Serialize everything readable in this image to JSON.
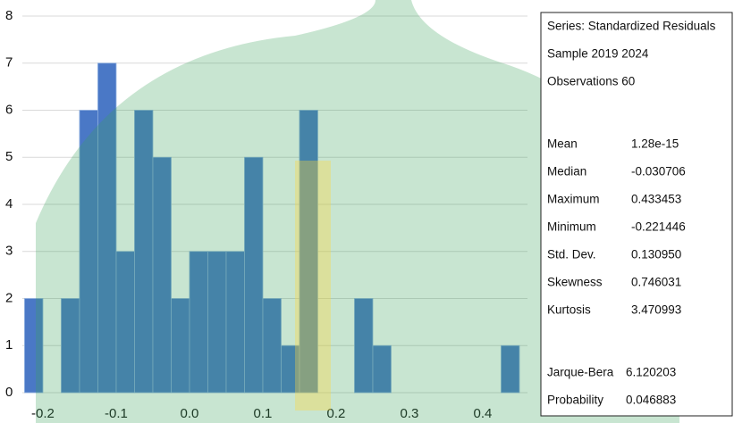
{
  "chart_data": {
    "type": "histogram",
    "bins": [
      -0.225,
      -0.2,
      -0.175,
      -0.15,
      -0.125,
      -0.1,
      -0.075,
      -0.05,
      -0.025,
      0,
      0.025,
      0.05,
      0.075,
      0.1,
      0.125,
      0.15,
      0.175,
      0.2,
      0.225,
      0.25,
      0.275,
      0.3,
      0.325,
      0.35,
      0.375,
      0.4,
      0.425,
      0.45,
      0.475
    ],
    "values": [
      2,
      0,
      2,
      6,
      7,
      3,
      6,
      5,
      2,
      3,
      3,
      3,
      5,
      2,
      1,
      6,
      0,
      0,
      2,
      1,
      0,
      0,
      0,
      0,
      0,
      0,
      1,
      0
    ],
    "color": "#4a78c6",
    "xlim": [
      -0.228,
      0.461
    ],
    "xticks": [
      -0.2,
      -0.1,
      {
        "value": 0,
        "label": "0.0"
      },
      0.1,
      0.2,
      0.3,
      0.4
    ],
    "ylim": [
      0,
      8
    ],
    "yticks": [
      0,
      1,
      2,
      3,
      4,
      5,
      6,
      7,
      8
    ],
    "grid": true
  },
  "stats_box": {
    "lines": [
      "Series: Standardized Residuals",
      "Sample 2019 2024",
      "Observations 60"
    ],
    "rows": [
      [
        "Mean",
        "1.28e-15"
      ],
      [
        "Median",
        "-0.030706"
      ],
      [
        "Maximum",
        "0.433453"
      ],
      [
        "Minimum",
        "-0.221446"
      ],
      [
        "Std. Dev.",
        "0.130950"
      ],
      [
        "Skewness",
        "0.746031"
      ],
      [
        "Kurtosis",
        "3.470993"
      ]
    ],
    "tests": [
      [
        "Jarque-Bera",
        "6.120203"
      ],
      [
        "Probability",
        "0.046883"
      ]
    ]
  }
}
